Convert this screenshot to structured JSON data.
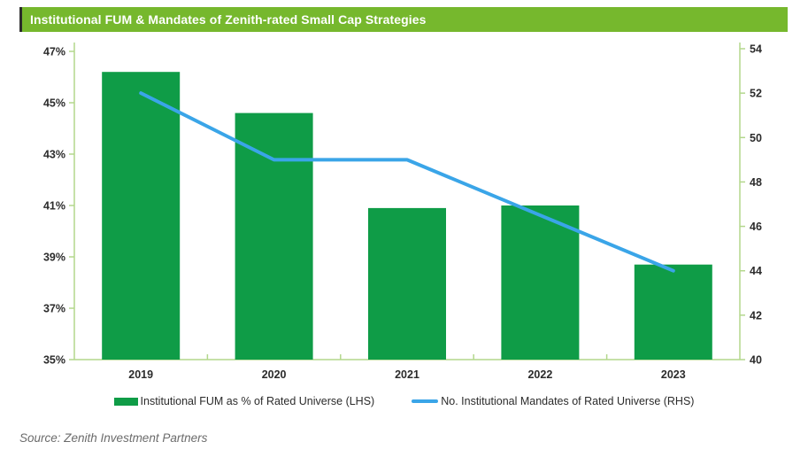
{
  "title_bar": {
    "title": "Institutional FUM & Mandates of Zenith-rated Small Cap Strategies"
  },
  "source": {
    "text": "Source: Zenith Investment Partners"
  },
  "colors": {
    "title_bg": "#76b82d",
    "title_text": "#ffffff",
    "title_left_edge": "#2b2b2b",
    "bar": "#0f9c47",
    "line": "#3aa5e8",
    "axis": "#b3d78c",
    "tick_text": "#2b2b2b",
    "legend_text": "#2b2b2b",
    "source_text": "#6b6b6b"
  },
  "chart_data": {
    "type": "bar",
    "title": "Institutional FUM & Mandates of Zenith-rated Small Cap Strategies",
    "categories": [
      "2019",
      "2020",
      "2021",
      "2022",
      "2023"
    ],
    "series": [
      {
        "name": "Institutional FUM as % of Rated Universe (LHS)",
        "type": "bar",
        "axis": "left",
        "color": "#0f9c47",
        "values": [
          46.2,
          44.6,
          40.9,
          41.0,
          38.7
        ]
      },
      {
        "name": "No. Institutional Mandates of Rated Universe (RHS)",
        "type": "line",
        "axis": "right",
        "color": "#3aa5e8",
        "values": [
          52,
          49,
          49,
          46.5,
          44
        ]
      }
    ],
    "left_axis": {
      "min": 35,
      "max": 47,
      "step": 2,
      "suffix": "%",
      "tick_labels": [
        "47%",
        "45%",
        "43%",
        "41%",
        "39%",
        "37%",
        "35%"
      ]
    },
    "right_axis": {
      "min": 40,
      "max": 54,
      "step": 2,
      "tick_labels": [
        "54",
        "52",
        "50",
        "48",
        "46",
        "44",
        "42",
        "40"
      ]
    },
    "grid": false,
    "legend_position": "bottom"
  }
}
